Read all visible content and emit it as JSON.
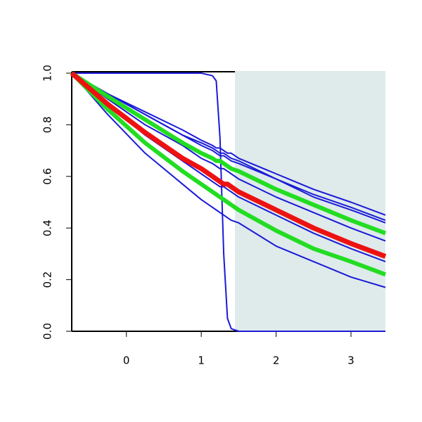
{
  "chart_data": {
    "type": "line",
    "x": [
      -0.73,
      -0.25,
      0.25,
      0.75,
      1,
      1.15,
      1.2,
      1.25,
      1.3,
      1.35,
      1.4,
      1.5,
      2,
      2.5,
      3,
      3.46
    ],
    "xlim": [
      -0.73,
      3.46
    ],
    "ylim": [
      0,
      1
    ],
    "xticks": [
      0,
      1,
      2,
      3
    ],
    "yticks": [
      {
        "value": 0,
        "label": "0.0"
      },
      {
        "value": 0.2,
        "label": "0.2"
      },
      {
        "value": 0.4,
        "label": "0.4"
      },
      {
        "value": 0.6,
        "label": "0.6"
      },
      {
        "value": 0.8,
        "label": "0.8"
      },
      {
        "value": 1,
        "label": "1.0"
      }
    ],
    "shaded_region": {
      "x": [
        1.45,
        3.46
      ],
      "color": "#dfeaeb"
    },
    "series": [
      {
        "color": "#1a1ad8",
        "width": 2,
        "values": [
          1,
          0.92,
          0.85,
          0.78,
          0.74,
          0.72,
          0.71,
          0.71,
          0.7,
          0.69,
          0.69,
          0.67,
          0.61,
          0.55,
          0.5,
          0.45
        ]
      },
      {
        "color": "#1a1ad8",
        "width": 2,
        "values": [
          1,
          0.92,
          0.84,
          0.76,
          0.73,
          0.71,
          0.7,
          0.69,
          0.69,
          0.68,
          0.67,
          0.66,
          0.59,
          0.53,
          0.48,
          0.43
        ]
      },
      {
        "color": "#1a1ad8",
        "width": 2,
        "values": [
          1,
          0.92,
          0.84,
          0.76,
          0.72,
          0.7,
          0.69,
          0.68,
          0.68,
          0.67,
          0.66,
          0.65,
          0.59,
          0.52,
          0.47,
          0.42
        ]
      },
      {
        "color": "#1a1ad8",
        "width": 2,
        "values": [
          1,
          0.9,
          0.8,
          0.72,
          0.67,
          0.65,
          0.64,
          0.63,
          0.63,
          0.62,
          0.61,
          0.59,
          0.52,
          0.46,
          0.4,
          0.35
        ]
      },
      {
        "color": "#1a1ad8",
        "width": 2,
        "values": [
          1,
          0.88,
          0.76,
          0.66,
          0.61,
          0.58,
          0.57,
          0.56,
          0.56,
          0.55,
          0.54,
          0.52,
          0.45,
          0.38,
          0.32,
          0.27
        ]
      },
      {
        "color": "#1a1ad8",
        "width": 2,
        "values": [
          1,
          0.84,
          0.69,
          0.57,
          0.51,
          0.48,
          0.47,
          0.46,
          0.45,
          0.44,
          0.43,
          0.42,
          0.33,
          0.27,
          0.21,
          0.17
        ]
      },
      {
        "color": "#1a1ad8",
        "width": 2,
        "values": [
          1,
          1,
          1,
          1,
          1,
          0.99,
          0.97,
          0.75,
          0.3,
          0.05,
          0.01,
          0,
          0,
          0,
          0,
          0
        ]
      },
      {
        "color": "#22dd22",
        "width": 6,
        "values": [
          1,
          0.91,
          0.82,
          0.73,
          0.69,
          0.67,
          0.66,
          0.66,
          0.65,
          0.64,
          0.63,
          0.62,
          0.55,
          0.49,
          0.43,
          0.38
        ]
      },
      {
        "color": "#22dd22",
        "width": 6,
        "values": [
          1,
          0.86,
          0.73,
          0.62,
          0.57,
          0.54,
          0.53,
          0.52,
          0.51,
          0.5,
          0.49,
          0.47,
          0.39,
          0.32,
          0.27,
          0.22
        ]
      },
      {
        "color": "#ee1111",
        "width": 7,
        "values": [
          1,
          0.88,
          0.77,
          0.67,
          0.63,
          0.6,
          0.59,
          0.58,
          0.57,
          0.57,
          0.56,
          0.54,
          0.47,
          0.4,
          0.34,
          0.29
        ]
      }
    ]
  }
}
